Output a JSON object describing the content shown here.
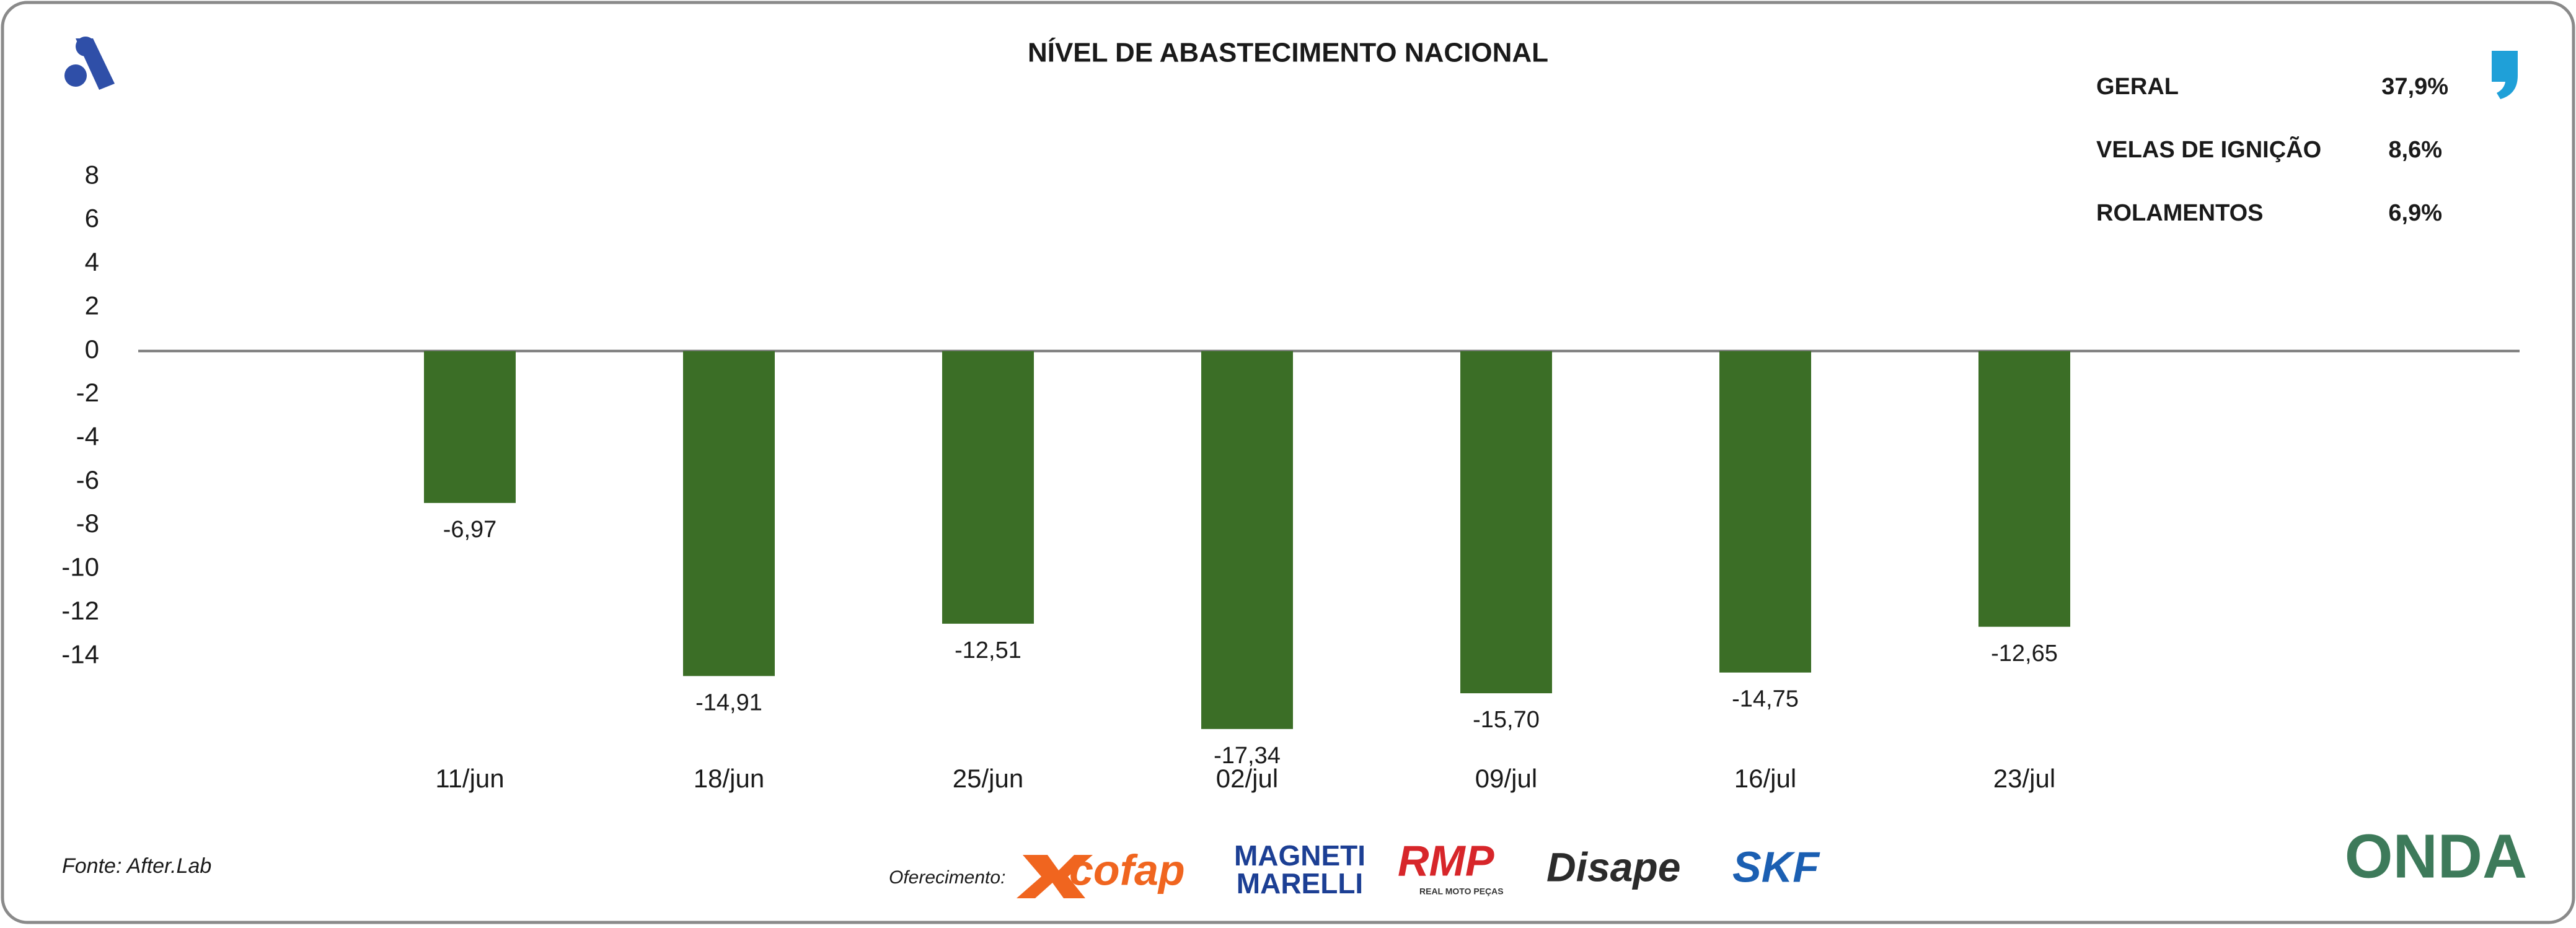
{
  "chart_data": {
    "type": "bar",
    "title": "NÍVEL DE ABASTECIMENTO NACIONAL",
    "categories": [
      "11/jun",
      "18/jun",
      "25/jun",
      "02/jul",
      "09/jul",
      "16/jul",
      "23/jul"
    ],
    "values": [
      -6.97,
      -14.91,
      -12.51,
      -17.34,
      -15.7,
      -14.75,
      -12.65
    ],
    "value_labels": [
      "-6,97",
      "-14,91",
      "-12,51",
      "-17,34",
      "-15,70",
      "-14,75",
      "-12,65"
    ],
    "color": "#3b6e26",
    "ylim": [
      -18,
      9
    ],
    "yticks": [
      8,
      6,
      4,
      2,
      0,
      -2,
      -4,
      -6,
      -8,
      -10,
      -12,
      -14
    ],
    "grid": false
  },
  "summary": {
    "rows": [
      [
        "GERAL",
        "37,9%"
      ],
      [
        "VELAS DE IGNIÇÃO",
        "8,6%"
      ],
      [
        "ROLAMENTOS",
        "6,9%"
      ]
    ]
  },
  "footer": {
    "source": "Fonte: After.Lab",
    "sponsor_label": "Oferecimento:",
    "sponsors": {
      "cofap": "cofap",
      "magneti": "MAGNETI",
      "marelli": "MARELLI",
      "rmp": "RMP",
      "rmp_sub": "REAL MOTO PEÇAS",
      "disape": "Disape",
      "skf": "SKF"
    },
    "brand": "ONDA"
  }
}
